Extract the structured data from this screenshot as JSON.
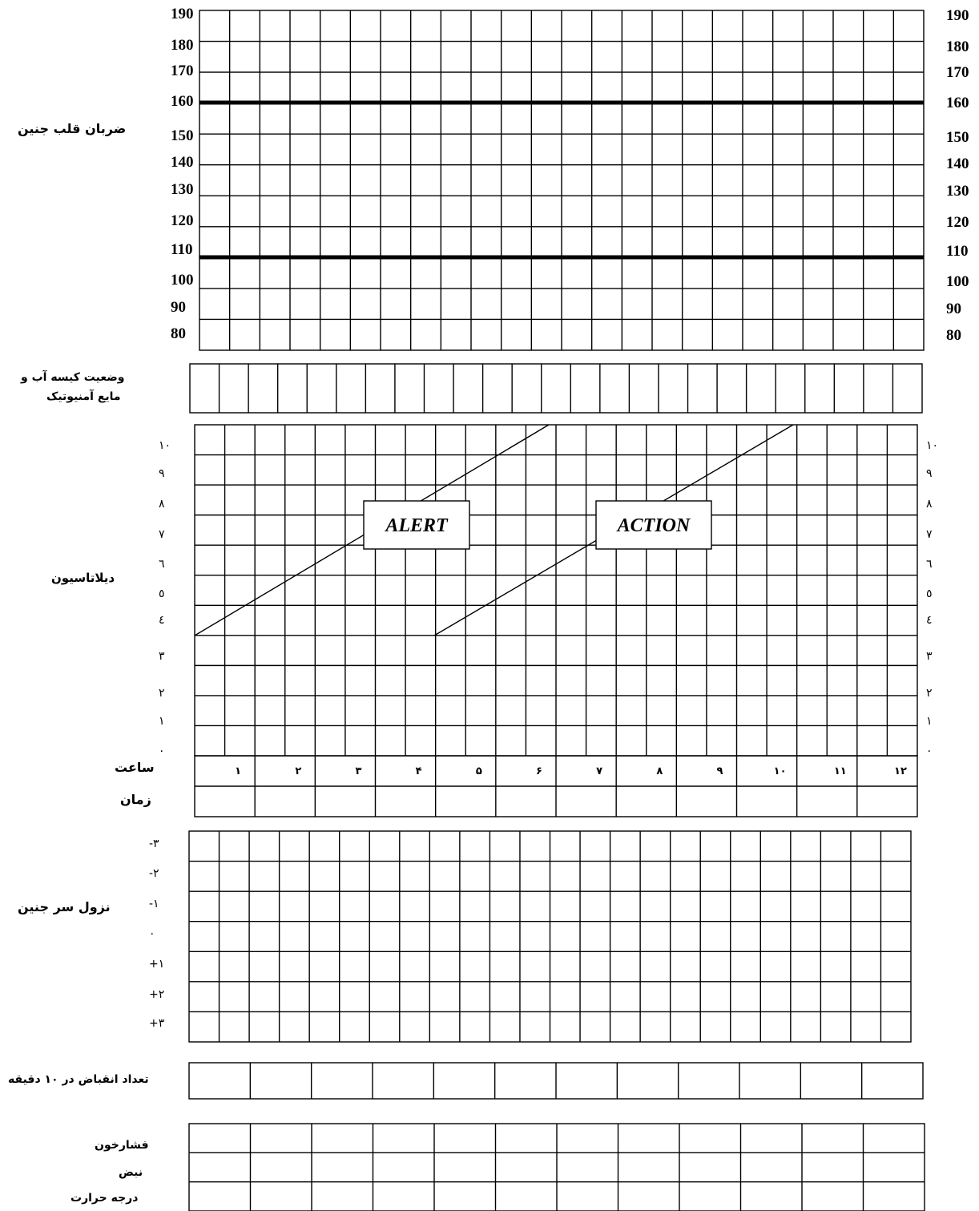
{
  "fhr": {
    "label": "ضربان قلب جنین",
    "ticks": [
      "190",
      "180",
      "170",
      "160",
      "150",
      "140",
      "130",
      "120",
      "110",
      "100",
      "90",
      "80"
    ],
    "normal_range": [
      110,
      160
    ]
  },
  "membranes": {
    "label_line1": "وضعیت کیسه آب و",
    "label_line2": "مایع آمنیوتیک"
  },
  "dilatation": {
    "label": "دیلاتاسیون",
    "ticks": [
      "۱۰",
      "۹",
      "۸",
      "۷",
      "٦",
      "٥",
      "٤",
      "۳",
      "۲",
      "۱",
      "۰"
    ],
    "alert_label": "ALERT",
    "action_label": "ACTION"
  },
  "time": {
    "hour_label": "ساعت",
    "time_label": "زمان",
    "hours": [
      "۱",
      "۲",
      "۳",
      "۴",
      "۵",
      "۶",
      "۷",
      "۸",
      "۹",
      "۱۰",
      "۱۱",
      "۱۲"
    ]
  },
  "descent": {
    "label": "نزول سر جنین",
    "ticks": [
      "-۳",
      "-۲",
      "-۱",
      "۰",
      "+۱",
      "+۲",
      "+۳"
    ]
  },
  "contractions": {
    "label": "تعداد انقباض در ۱۰ دقیقه"
  },
  "vitals": {
    "bp_label": "فشارخون",
    "pulse_label": "نبض",
    "temp_label": "درجه حرارت"
  }
}
